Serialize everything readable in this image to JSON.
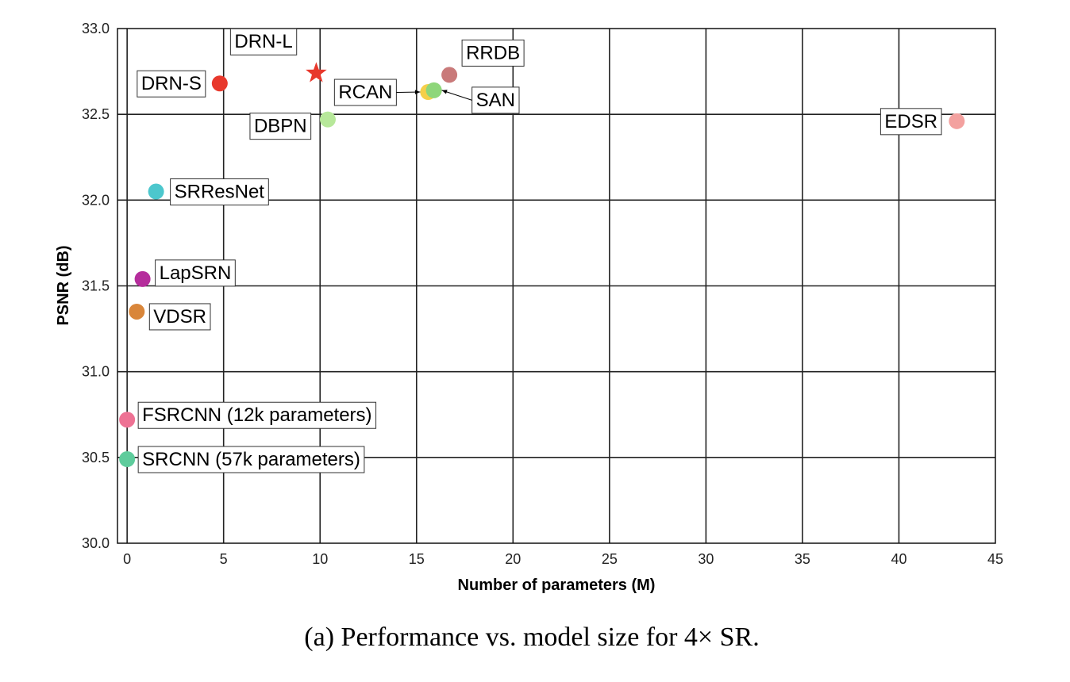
{
  "chart_data": {
    "type": "scatter",
    "caption": "(a)  Performance vs. model size for 4× SR.",
    "xlabel": "Number of parameters (M)",
    "ylabel": "PSNR (dB)",
    "xlim": [
      -0.5,
      45
    ],
    "ylim": [
      30.0,
      33.0
    ],
    "grid": true,
    "xticks": [
      "0",
      "5",
      "10",
      "15",
      "20",
      "25",
      "30",
      "35",
      "40",
      "45"
    ],
    "xtick_values": [
      0,
      5,
      10,
      15,
      20,
      25,
      30,
      35,
      40,
      45
    ],
    "yticks": [
      "30.0",
      "30.5",
      "31.0",
      "31.5",
      "32.0",
      "32.5",
      "33.0"
    ],
    "ytick_values": [
      30.0,
      30.5,
      31.0,
      31.5,
      32.0,
      32.5,
      33.0
    ],
    "points": [
      {
        "label": "DRN-L",
        "x": 9.8,
        "y": 32.74,
        "color": "#e8382c",
        "marker": "star"
      },
      {
        "label": "DRN-S",
        "x": 4.8,
        "y": 32.68,
        "color": "#e8382c",
        "marker": "circle"
      },
      {
        "label": "RRDB",
        "x": 16.7,
        "y": 32.73,
        "color": "#c97a7a",
        "marker": "circle"
      },
      {
        "label": "RCAN",
        "x": 15.6,
        "y": 32.63,
        "color": "#f5cf4a",
        "marker": "circle"
      },
      {
        "label": "SAN",
        "x": 15.9,
        "y": 32.64,
        "color": "#8ed67a",
        "marker": "circle"
      },
      {
        "label": "DBPN",
        "x": 10.4,
        "y": 32.47,
        "color": "#b7e89a",
        "marker": "circle"
      },
      {
        "label": "EDSR",
        "x": 43.0,
        "y": 32.46,
        "color": "#f3a19f",
        "marker": "circle"
      },
      {
        "label": "SRResNet",
        "x": 1.5,
        "y": 32.05,
        "color": "#4cc7cd",
        "marker": "circle"
      },
      {
        "label": "LapSRN",
        "x": 0.8,
        "y": 31.54,
        "color": "#b52d9c",
        "marker": "circle"
      },
      {
        "label": "VDSR",
        "x": 0.5,
        "y": 31.35,
        "color": "#d9863a",
        "marker": "circle"
      },
      {
        "label": "FSRCNN (12k parameters)",
        "x": 0.0,
        "y": 30.72,
        "color": "#ee7294",
        "marker": "circle"
      },
      {
        "label": "SRCNN (57k parameters)",
        "x": 0.0,
        "y": 30.49,
        "color": "#5ecc9c",
        "marker": "circle"
      }
    ]
  }
}
